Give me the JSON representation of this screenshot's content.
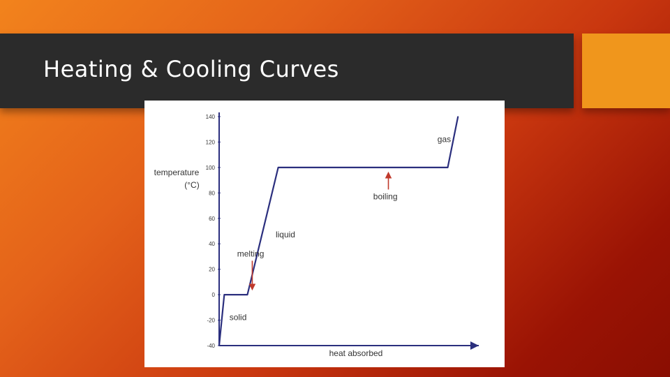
{
  "slide": {
    "title": "Heating & Cooling Curves",
    "colors": {
      "title_bar": "#2b2b2b",
      "accent": "#f0961c",
      "curve": "#2b2f7e",
      "arrow": "#c0392b"
    }
  },
  "chart_data": {
    "type": "line",
    "title": "",
    "xlabel": "heat absorbed",
    "ylabel": "temperature\n(°C)",
    "ylim": [
      -40,
      140
    ],
    "y_ticks": [
      140,
      120,
      100,
      80,
      60,
      40,
      20,
      0,
      -20,
      -40
    ],
    "grid": false,
    "series": [
      {
        "x": [
          0,
          0.02,
          0.11,
          0.23,
          0.89,
          0.93
        ],
        "y": [
          -40,
          0,
          0,
          100,
          100,
          140
        ]
      }
    ],
    "annotations": [
      {
        "text": "solid",
        "x": 0.04,
        "y": -20,
        "arrow": false
      },
      {
        "text": "melting",
        "x": 0.07,
        "y": 30,
        "arrow": true,
        "arrow_to_y": 2
      },
      {
        "text": "liquid",
        "x": 0.22,
        "y": 45,
        "arrow": false
      },
      {
        "text": "boiling",
        "x": 0.6,
        "y": 75,
        "arrow": true,
        "arrow_to_y": 98
      },
      {
        "text": "gas",
        "x": 0.85,
        "y": 120,
        "arrow": false
      }
    ]
  }
}
